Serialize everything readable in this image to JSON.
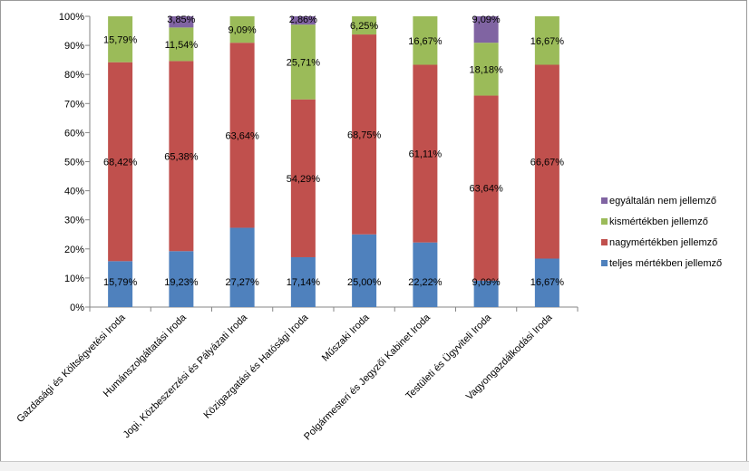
{
  "chart_data": {
    "type": "bar",
    "stacked": "percent",
    "categories": [
      "Gazdasági és Költségvetési Iroda",
      "Humánszolgáltatási Iroda",
      "Jogi, Közbeszerzési és Pályázati Iroda",
      "Közigazgatási és Hatósági Iroda",
      "Műszaki Iroda",
      "Polgármesteri és Jegyzői Kabinet Iroda",
      "Testületi és Ügyviteli Iroda",
      "Vagyongazdálkodási Iroda"
    ],
    "series": [
      {
        "name": "teljes mértékben jellemző",
        "color": "#4f81bd",
        "values": [
          15.79,
          19.23,
          27.27,
          17.14,
          25.0,
          22.22,
          9.09,
          16.67
        ],
        "labels": [
          "15,79%",
          "19,23%",
          "27,27%",
          "17,14%",
          "25,00%",
          "22,22%",
          "9,09%",
          "16,67%"
        ]
      },
      {
        "name": "nagymértékben jellemző",
        "color": "#c0504d",
        "values": [
          68.42,
          65.38,
          63.64,
          54.29,
          68.75,
          61.11,
          63.64,
          66.67
        ],
        "labels": [
          "68,42%",
          "65,38%",
          "63,64%",
          "54,29%",
          "68,75%",
          "61,11%",
          "63,64%",
          "66,67%"
        ]
      },
      {
        "name": "kismértékben jellemző",
        "color": "#9bbb59",
        "values": [
          15.79,
          11.54,
          9.09,
          25.71,
          6.25,
          16.67,
          18.18,
          16.67
        ],
        "labels": [
          "15,79%",
          "11,54%",
          "9,09%",
          "25,71%",
          "6,25%",
          "16,67%",
          "18,18%",
          "16,67%"
        ]
      },
      {
        "name": "egyáltalán nem jellemző",
        "color": "#8064a2",
        "values": [
          0,
          3.85,
          0,
          2.86,
          0,
          0,
          9.09,
          0
        ],
        "labels": [
          "",
          "3,85%",
          "",
          "2,86%",
          "",
          "",
          "9,09%",
          ""
        ]
      }
    ],
    "yticks": [
      "0%",
      "10%",
      "20%",
      "30%",
      "40%",
      "50%",
      "60%",
      "70%",
      "80%",
      "90%",
      "100%"
    ],
    "ylim": [
      0,
      100
    ],
    "grid": false,
    "legend": "right",
    "xlabel": "",
    "ylabel": "",
    "title": ""
  }
}
